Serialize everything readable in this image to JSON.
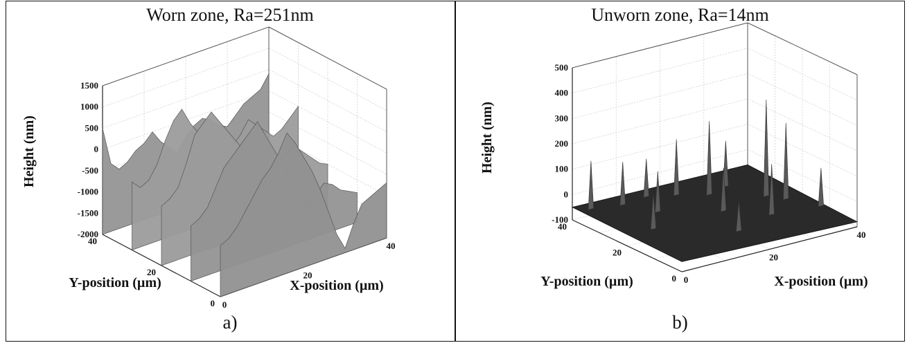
{
  "chart_data": [
    {
      "type": "surface",
      "title": "Worn zone, Ra=251nm",
      "panel_label": "a)",
      "xlabel": "X-position (µm)",
      "ylabel": "Y-position (µm)",
      "zlabel": "Height (nm)",
      "x_ticks": [
        "0",
        "20",
        "40"
      ],
      "y_ticks": [
        "0",
        "20",
        "40"
      ],
      "z_ticks": [
        "-2000",
        "-1500",
        "-1000",
        "-500",
        "0",
        "500",
        "1000",
        "1500"
      ],
      "xlim": [
        0,
        40
      ],
      "ylim": [
        0,
        40
      ],
      "zlim": [
        -2000,
        1500
      ],
      "ra_nm": 251,
      "colormap": "gray",
      "grid": true,
      "profiles": [
        {
          "y": 40,
          "z": [
            500,
            -400,
            -600,
            -500,
            -300,
            -200,
            0,
            -300,
            -500,
            -700,
            -400,
            -200,
            -100,
            -200,
            -400,
            -500,
            -300,
            -100,
            0,
            100,
            400
          ]
        },
        {
          "y": 30,
          "z": [
            -400,
            -600,
            -500,
            -200,
            300,
            700,
            900,
            500,
            200,
            0,
            -300,
            -500,
            -400,
            -200,
            100,
            -100,
            -300,
            -500,
            -400,
            -200,
            0
          ]
        },
        {
          "y": 20,
          "z": [
            -600,
            -500,
            -300,
            200,
            800,
            1000,
            1200,
            900,
            600,
            300,
            0,
            -200,
            -500,
            -700,
            -600,
            -400,
            -300,
            -500,
            -700,
            -900,
            -1000
          ]
        },
        {
          "y": 10,
          "z": [
            -700,
            -600,
            -400,
            0,
            400,
            600,
            800,
            1000,
            1200,
            800,
            400,
            0,
            -400,
            -800,
            -1200,
            -1000,
            -800,
            -900,
            -1100,
            -1200,
            -1300
          ]
        },
        {
          "y": 0,
          "z": [
            -800,
            -700,
            -500,
            -200,
            100,
            400,
            600,
            900,
            1300,
            1000,
            600,
            200,
            -300,
            -900,
            -1500,
            -1900,
            -1400,
            -1000,
            -900,
            -800,
            -700
          ]
        }
      ]
    },
    {
      "type": "surface",
      "title": "Unworn zone, Ra=14nm",
      "panel_label": "b)",
      "xlabel": "X-position (µm)",
      "ylabel": "Y-position (µm)",
      "zlabel": "Height (nm)",
      "x_ticks": [
        "0",
        "20",
        "40"
      ],
      "y_ticks": [
        "0",
        "20",
        "40"
      ],
      "z_ticks": [
        "-100",
        "0",
        "100",
        "200",
        "300",
        "400",
        "500"
      ],
      "xlim": [
        0,
        40
      ],
      "ylim": [
        0,
        40
      ],
      "zlim": [
        -100,
        500
      ],
      "ra_nm": 14,
      "colormap": "gray",
      "grid": true,
      "peaks": [
        {
          "x": 3,
          "y": 38,
          "z": 130
        },
        {
          "x": 9,
          "y": 36,
          "z": 110
        },
        {
          "x": 15,
          "y": 37,
          "z": 90
        },
        {
          "x": 20,
          "y": 34,
          "z": 160
        },
        {
          "x": 25,
          "y": 30,
          "z": 230
        },
        {
          "x": 30,
          "y": 32,
          "z": 120
        },
        {
          "x": 33,
          "y": 22,
          "z": 320
        },
        {
          "x": 35,
          "y": 18,
          "z": 240
        },
        {
          "x": 12,
          "y": 28,
          "z": 100
        },
        {
          "x": 28,
          "y": 12,
          "z": 140
        },
        {
          "x": 6,
          "y": 20,
          "z": 80
        },
        {
          "x": 18,
          "y": 8,
          "z": 60
        },
        {
          "x": 38,
          "y": 10,
          "z": 90
        },
        {
          "x": 22,
          "y": 20,
          "z": 110
        }
      ]
    }
  ]
}
